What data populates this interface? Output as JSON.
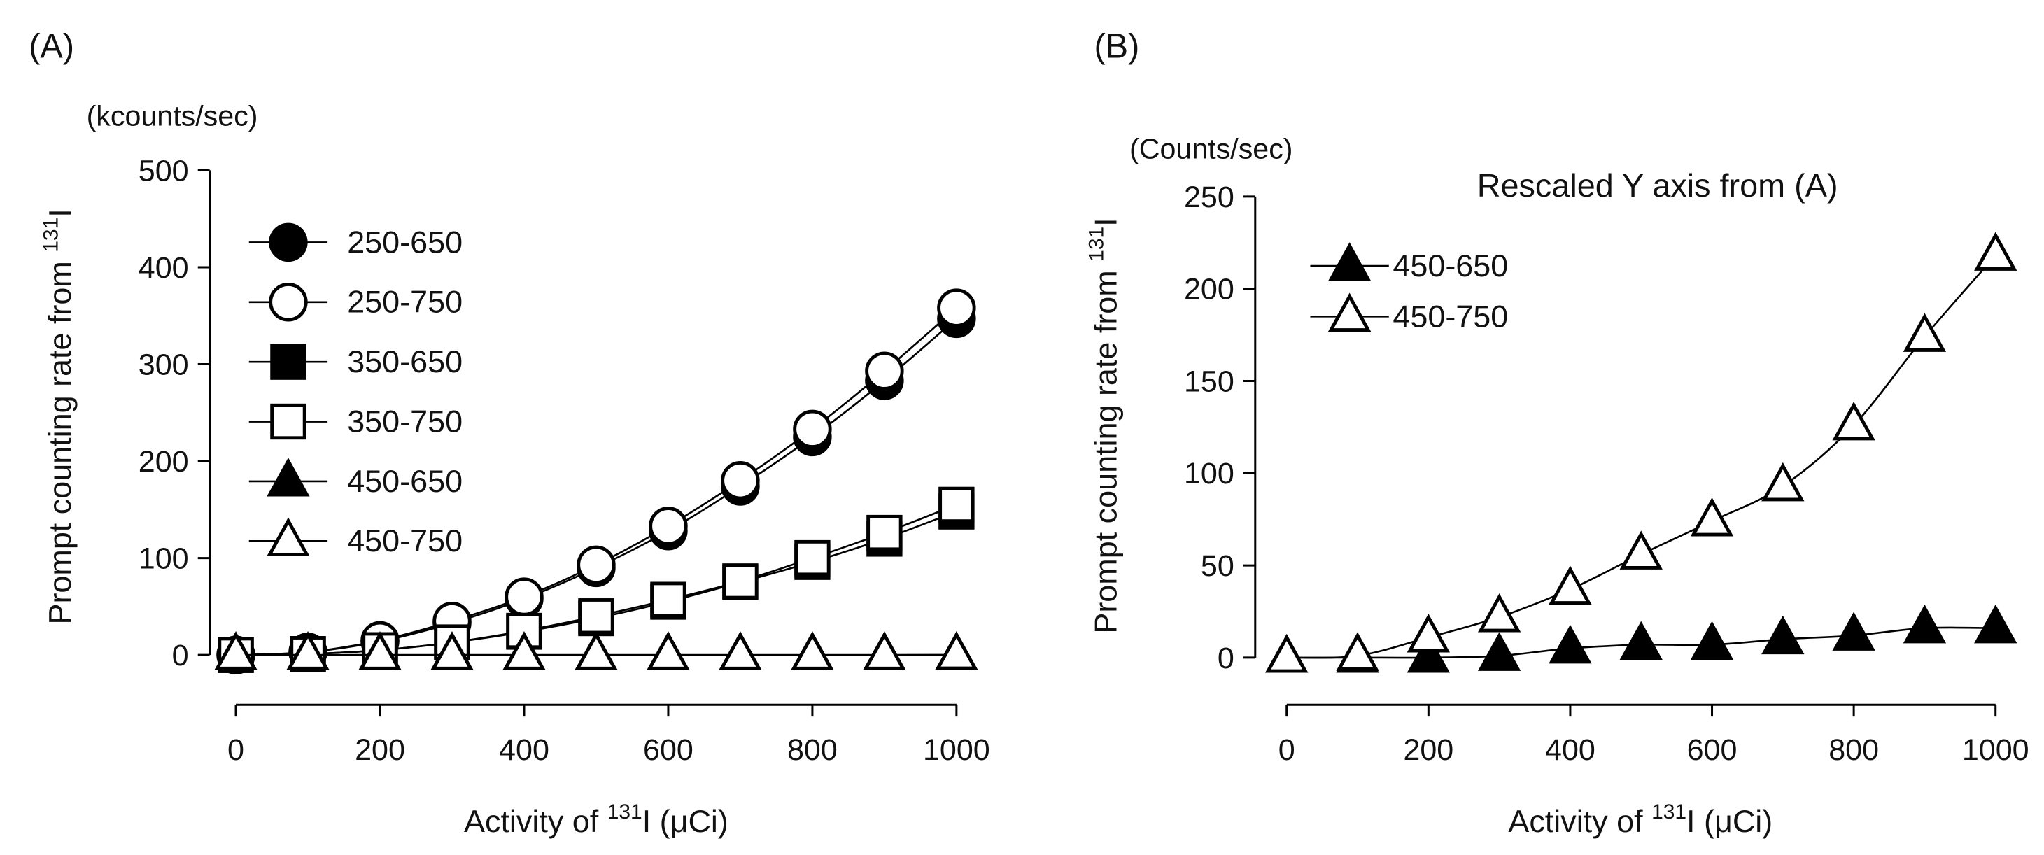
{
  "chart_data": [
    {
      "type": "line",
      "panel_label": "(A)",
      "unit_label": "(kcounts/sec)",
      "ylabel_main": "Prompt counting rate from ",
      "ylabel_sup": "131",
      "ylabel_end": "I",
      "xlabel_main": "Activity of ",
      "xlabel_sup": "131",
      "xlabel_end": "I (μCi)",
      "xlim": [
        0,
        1000
      ],
      "ylim": [
        0,
        500
      ],
      "xticks": [
        0,
        200,
        400,
        600,
        800,
        1000
      ],
      "yticks": [
        0,
        100,
        200,
        300,
        400,
        500
      ],
      "grid": false,
      "legend_position": "upper-left",
      "x": [
        0,
        100,
        200,
        300,
        400,
        500,
        600,
        700,
        800,
        900,
        1000
      ],
      "series": [
        {
          "name": "250-650",
          "marker": "circle",
          "filled": true,
          "values": [
            0,
            3,
            14,
            33,
            58,
            90,
            128,
            174,
            225,
            283,
            347
          ]
        },
        {
          "name": "250-750",
          "marker": "circle",
          "filled": false,
          "values": [
            0,
            3,
            15,
            35,
            60,
            93,
            133,
            180,
            233,
            293,
            358
          ]
        },
        {
          "name": "350-650",
          "marker": "square",
          "filled": true,
          "values": [
            0,
            1,
            5,
            13,
            24,
            38,
            55,
            75,
            96,
            120,
            148
          ]
        },
        {
          "name": "350-750",
          "marker": "square",
          "filled": false,
          "values": [
            0,
            1,
            5,
            13,
            25,
            40,
            57,
            76,
            100,
            126,
            155
          ]
        },
        {
          "name": "450-650",
          "marker": "triangle",
          "filled": true,
          "values": [
            0,
            0,
            0,
            0,
            0,
            0,
            0,
            0,
            0,
            0,
            0
          ]
        },
        {
          "name": "450-750",
          "marker": "triangle",
          "filled": false,
          "values": [
            0,
            0,
            0,
            0,
            0,
            0,
            0,
            0,
            0,
            0,
            0.2
          ]
        }
      ]
    },
    {
      "type": "line",
      "panel_label": "(B)",
      "unit_label": "(Counts/sec)",
      "title": "Rescaled Y axis from (A)",
      "ylabel_main": "Prompt counting rate from ",
      "ylabel_sup": "131",
      "ylabel_end": "I",
      "xlabel_main": "Activity of ",
      "xlabel_sup": "131",
      "xlabel_end": "I (μCi)",
      "xlim": [
        0,
        1000
      ],
      "ylim": [
        0,
        250
      ],
      "xticks": [
        0,
        200,
        400,
        600,
        800,
        1000
      ],
      "yticks": [
        0,
        50,
        100,
        150,
        200,
        250
      ],
      "grid": false,
      "legend_position": "upper-left",
      "x": [
        0,
        100,
        200,
        300,
        400,
        500,
        600,
        700,
        800,
        900,
        1000
      ],
      "series": [
        {
          "name": "450-650",
          "marker": "triangle",
          "filled": true,
          "values": [
            0,
            0,
            0,
            1,
            5,
            7,
            7,
            10,
            12,
            16,
            16
          ]
        },
        {
          "name": "450-750",
          "marker": "triangle",
          "filled": false,
          "values": [
            0,
            1,
            11,
            22,
            37,
            56,
            74,
            93,
            126,
            174,
            218
          ]
        }
      ]
    }
  ]
}
